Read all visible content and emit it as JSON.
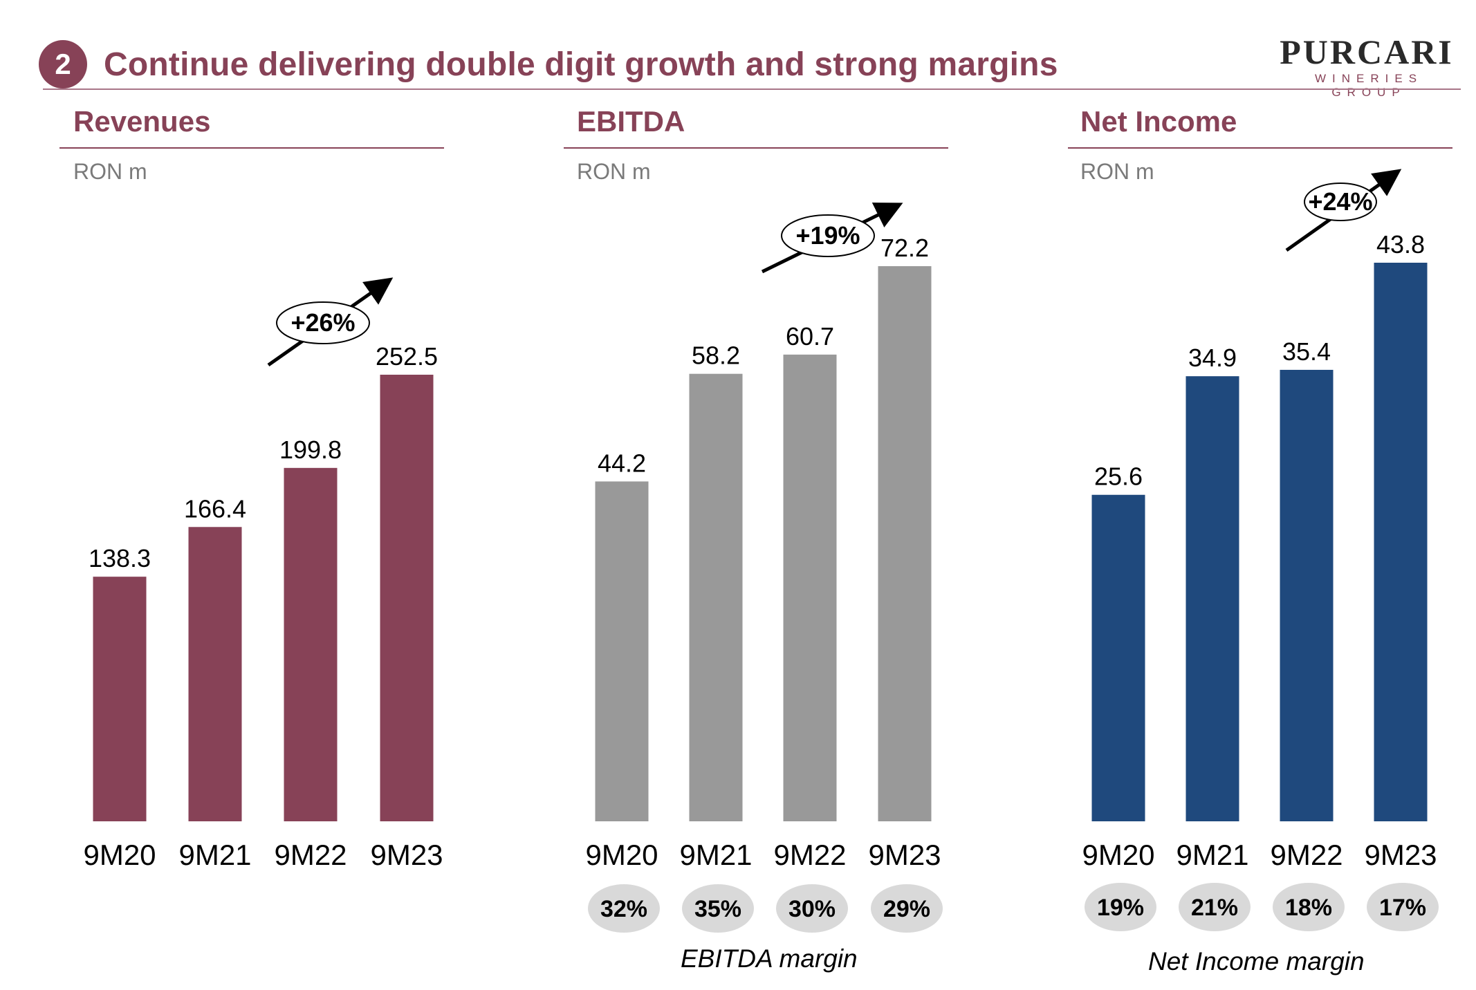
{
  "header": {
    "slide_number": "2",
    "title": "Continue delivering double digit growth and strong margins",
    "logo_main": "PURCARI",
    "logo_sub": "WINERIES GROUP"
  },
  "colors": {
    "accent": "#874257",
    "revenues_bar": "#874257",
    "ebitda_bar": "#999999",
    "net_income_bar": "#1f497d",
    "margin_pill": "#d9d9d9"
  },
  "chart_data": [
    {
      "type": "bar",
      "title": "Revenues",
      "subtitle": "RON m",
      "categories": [
        "9M20",
        "9M21",
        "9M22",
        "9M23"
      ],
      "values": [
        138.3,
        166.4,
        199.8,
        252.5
      ],
      "value_labels": [
        "138.3",
        "166.4",
        "199.8",
        "252.5"
      ],
      "growth_label": "+26%",
      "ylim": [
        0,
        252.5
      ],
      "grid": false
    },
    {
      "type": "bar",
      "title": "EBITDA",
      "subtitle": "RON m",
      "categories": [
        "9M20",
        "9M21",
        "9M22",
        "9M23"
      ],
      "values": [
        44.2,
        58.2,
        60.7,
        72.2
      ],
      "value_labels": [
        "44.2",
        "58.2",
        "60.7",
        "72.2"
      ],
      "growth_label": "+19%",
      "margins": [
        "32%",
        "35%",
        "30%",
        "29%"
      ],
      "margin_caption": "EBITDA margin",
      "ylim": [
        0,
        72.2
      ],
      "grid": false
    },
    {
      "type": "bar",
      "title": "Net Income",
      "subtitle": "RON m",
      "categories": [
        "9M20",
        "9M21",
        "9M22",
        "9M23"
      ],
      "values": [
        25.6,
        34.9,
        35.4,
        43.8
      ],
      "value_labels": [
        "25.6",
        "34.9",
        "35.4",
        "43.8"
      ],
      "growth_label": "+24%",
      "margins": [
        "19%",
        "21%",
        "18%",
        "17%"
      ],
      "margin_caption": "Net Income margin",
      "ylim": [
        0,
        43.8
      ],
      "grid": false
    }
  ]
}
